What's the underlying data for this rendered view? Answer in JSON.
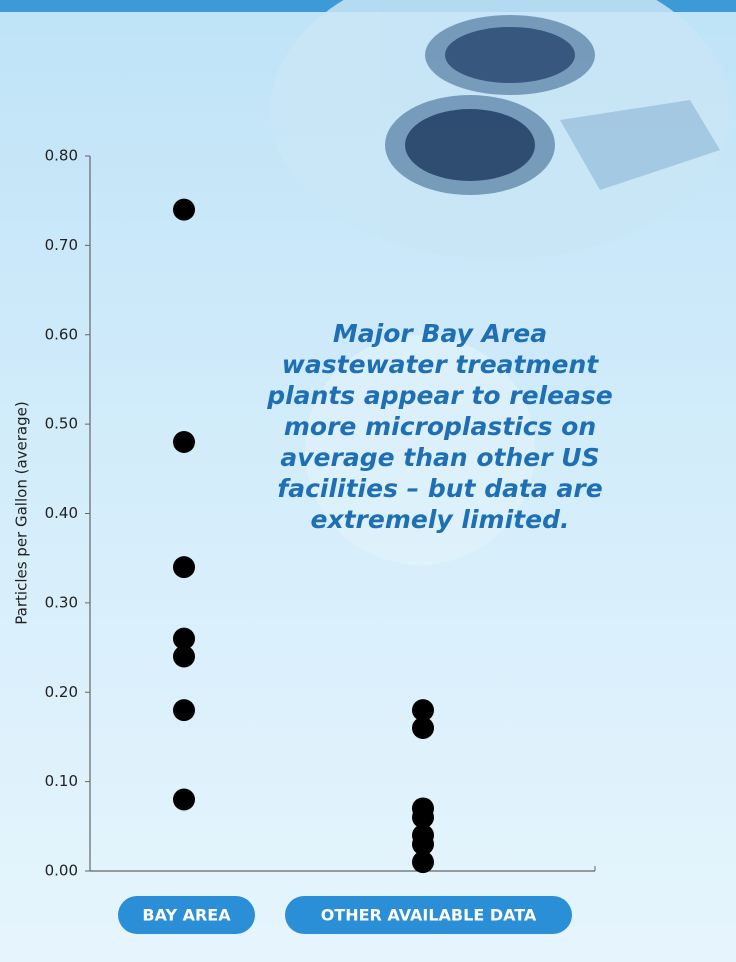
{
  "chart_data": {
    "type": "scatter",
    "y_label": "Particles per Gallon (average)",
    "annotation": [
      "Major Bay Area",
      "wastewater treatment",
      "plants appear to release",
      "more microplastics on",
      "average than other US",
      "facilities – but data are",
      "extremely limited."
    ],
    "series": [
      {
        "name": "BAY AREA",
        "color": "#000000",
        "values": [
          0.74,
          0.48,
          0.34,
          0.26,
          0.24,
          0.18,
          0.08
        ]
      },
      {
        "name": "OTHER AVAILABLE DATA",
        "color": "#000000",
        "values": [
          0.18,
          0.16,
          0.07,
          0.06,
          0.04,
          0.03,
          0.01
        ]
      }
    ],
    "ylim": [
      0,
      0.8
    ],
    "yticks": [
      {
        "value": 0,
        "label": "0.00"
      },
      {
        "value": 0.1,
        "label": "0.10"
      },
      {
        "value": 0.2,
        "label": "0.20"
      },
      {
        "value": 0.3,
        "label": "0.30"
      },
      {
        "value": 0.4,
        "label": "0.40"
      },
      {
        "value": 0.5,
        "label": "0.50"
      },
      {
        "value": 0.6,
        "label": "0.60"
      },
      {
        "value": 0.7,
        "label": "0.70"
      },
      {
        "value": 0.8,
        "label": "0.80"
      }
    ]
  }
}
